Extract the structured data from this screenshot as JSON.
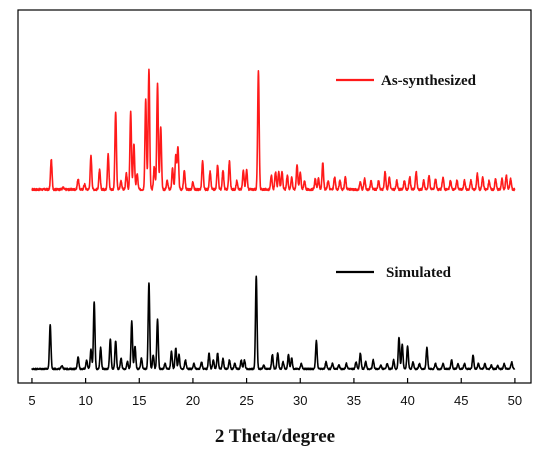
{
  "chart_data": {
    "type": "line",
    "title": "",
    "xlabel": "2 Theta/degree",
    "ylabel": "",
    "xlim": [
      3.7,
      51.5
    ],
    "ylim": [
      -0.08,
      2.04
    ],
    "xticks": [
      5,
      10,
      15,
      20,
      25,
      30,
      35,
      40,
      45,
      50
    ],
    "xtick_labels": [
      "5",
      "10",
      "15",
      "20",
      "25",
      "30",
      "35",
      "40",
      "45",
      "50"
    ],
    "yticks_shown": false,
    "grid": false,
    "legend_placement": "inline, right of each trace",
    "series": [
      {
        "name": "As-synthesized",
        "color": "#ff1a1a",
        "baseline": 1.02,
        "noise": 0.006,
        "peaks": [
          [
            6.8,
            0.17
          ],
          [
            7.9,
            0.01
          ],
          [
            9.3,
            0.06
          ],
          [
            9.9,
            0.03
          ],
          [
            10.5,
            0.19
          ],
          [
            11.3,
            0.11
          ],
          [
            12.1,
            0.2
          ],
          [
            12.8,
            0.44
          ],
          [
            13.3,
            0.05
          ],
          [
            13.8,
            0.09
          ],
          [
            14.2,
            0.44
          ],
          [
            14.5,
            0.26
          ],
          [
            14.8,
            0.09
          ],
          [
            15.6,
            0.51
          ],
          [
            15.9,
            0.68
          ],
          [
            16.4,
            0.13
          ],
          [
            16.7,
            0.6
          ],
          [
            17.0,
            0.36
          ],
          [
            17.6,
            0.05
          ],
          [
            18.1,
            0.12
          ],
          [
            18.4,
            0.19
          ],
          [
            18.6,
            0.24
          ],
          [
            19.2,
            0.11
          ],
          [
            20.0,
            0.04
          ],
          [
            20.9,
            0.16
          ],
          [
            21.6,
            0.1
          ],
          [
            22.3,
            0.14
          ],
          [
            22.8,
            0.11
          ],
          [
            23.4,
            0.16
          ],
          [
            24.1,
            0.05
          ],
          [
            24.7,
            0.11
          ],
          [
            25.0,
            0.11
          ],
          [
            26.1,
            0.67
          ],
          [
            27.3,
            0.08
          ],
          [
            27.7,
            0.1
          ],
          [
            28.0,
            0.1
          ],
          [
            28.3,
            0.1
          ],
          [
            28.8,
            0.08
          ],
          [
            29.2,
            0.07
          ],
          [
            29.7,
            0.14
          ],
          [
            30.0,
            0.1
          ],
          [
            30.4,
            0.05
          ],
          [
            31.4,
            0.06
          ],
          [
            31.7,
            0.06
          ],
          [
            32.1,
            0.15
          ],
          [
            32.6,
            0.05
          ],
          [
            33.2,
            0.07
          ],
          [
            33.7,
            0.05
          ],
          [
            34.2,
            0.07
          ],
          [
            35.6,
            0.04
          ],
          [
            36.0,
            0.06
          ],
          [
            36.6,
            0.05
          ],
          [
            37.3,
            0.05
          ],
          [
            37.9,
            0.1
          ],
          [
            38.3,
            0.07
          ],
          [
            39.0,
            0.05
          ],
          [
            39.7,
            0.05
          ],
          [
            40.2,
            0.07
          ],
          [
            40.8,
            0.1
          ],
          [
            41.5,
            0.05
          ],
          [
            42.0,
            0.08
          ],
          [
            42.6,
            0.06
          ],
          [
            43.3,
            0.07
          ],
          [
            44.0,
            0.05
          ],
          [
            44.6,
            0.05
          ],
          [
            45.3,
            0.05
          ],
          [
            45.9,
            0.05
          ],
          [
            46.5,
            0.09
          ],
          [
            47.0,
            0.07
          ],
          [
            47.6,
            0.05
          ],
          [
            48.2,
            0.06
          ],
          [
            48.8,
            0.06
          ],
          [
            49.2,
            0.08
          ],
          [
            49.6,
            0.06
          ]
        ]
      },
      {
        "name": "Simulated",
        "color": "#000000",
        "baseline": 0.0,
        "noise": 0.004,
        "peaks": [
          [
            6.7,
            0.25
          ],
          [
            7.8,
            0.02
          ],
          [
            9.3,
            0.07
          ],
          [
            10.1,
            0.05
          ],
          [
            10.5,
            0.11
          ],
          [
            10.8,
            0.38
          ],
          [
            11.4,
            0.12
          ],
          [
            12.3,
            0.17
          ],
          [
            12.8,
            0.16
          ],
          [
            13.3,
            0.06
          ],
          [
            13.9,
            0.04
          ],
          [
            14.3,
            0.27
          ],
          [
            14.6,
            0.13
          ],
          [
            15.2,
            0.06
          ],
          [
            15.9,
            0.49
          ],
          [
            16.3,
            0.08
          ],
          [
            16.7,
            0.28
          ],
          [
            17.4,
            0.03
          ],
          [
            18.0,
            0.1
          ],
          [
            18.4,
            0.12
          ],
          [
            18.7,
            0.08
          ],
          [
            19.3,
            0.05
          ],
          [
            20.1,
            0.03
          ],
          [
            20.8,
            0.04
          ],
          [
            21.5,
            0.09
          ],
          [
            21.9,
            0.05
          ],
          [
            22.3,
            0.09
          ],
          [
            22.8,
            0.06
          ],
          [
            23.4,
            0.05
          ],
          [
            23.9,
            0.03
          ],
          [
            24.5,
            0.05
          ],
          [
            24.8,
            0.05
          ],
          [
            25.9,
            0.53
          ],
          [
            26.6,
            0.02
          ],
          [
            27.4,
            0.08
          ],
          [
            27.9,
            0.09
          ],
          [
            28.4,
            0.04
          ],
          [
            28.9,
            0.08
          ],
          [
            29.2,
            0.06
          ],
          [
            30.1,
            0.03
          ],
          [
            31.5,
            0.16
          ],
          [
            32.4,
            0.04
          ],
          [
            33.0,
            0.03
          ],
          [
            33.6,
            0.02
          ],
          [
            34.3,
            0.03
          ],
          [
            35.2,
            0.04
          ],
          [
            35.6,
            0.09
          ],
          [
            36.1,
            0.04
          ],
          [
            36.8,
            0.05
          ],
          [
            37.5,
            0.02
          ],
          [
            38.1,
            0.03
          ],
          [
            38.7,
            0.05
          ],
          [
            39.2,
            0.18
          ],
          [
            39.5,
            0.14
          ],
          [
            40.0,
            0.13
          ],
          [
            40.5,
            0.04
          ],
          [
            41.1,
            0.03
          ],
          [
            41.8,
            0.12
          ],
          [
            42.6,
            0.03
          ],
          [
            43.3,
            0.03
          ],
          [
            44.1,
            0.05
          ],
          [
            44.7,
            0.03
          ],
          [
            45.3,
            0.03
          ],
          [
            46.1,
            0.08
          ],
          [
            46.6,
            0.03
          ],
          [
            47.2,
            0.03
          ],
          [
            47.8,
            0.02
          ],
          [
            48.4,
            0.02
          ],
          [
            49.0,
            0.03
          ],
          [
            49.7,
            0.04
          ]
        ]
      }
    ],
    "legend": [
      {
        "label": "As-synthesized",
        "color": "#ff1a1a"
      },
      {
        "label": "Simulated",
        "color": "#000000"
      }
    ]
  }
}
